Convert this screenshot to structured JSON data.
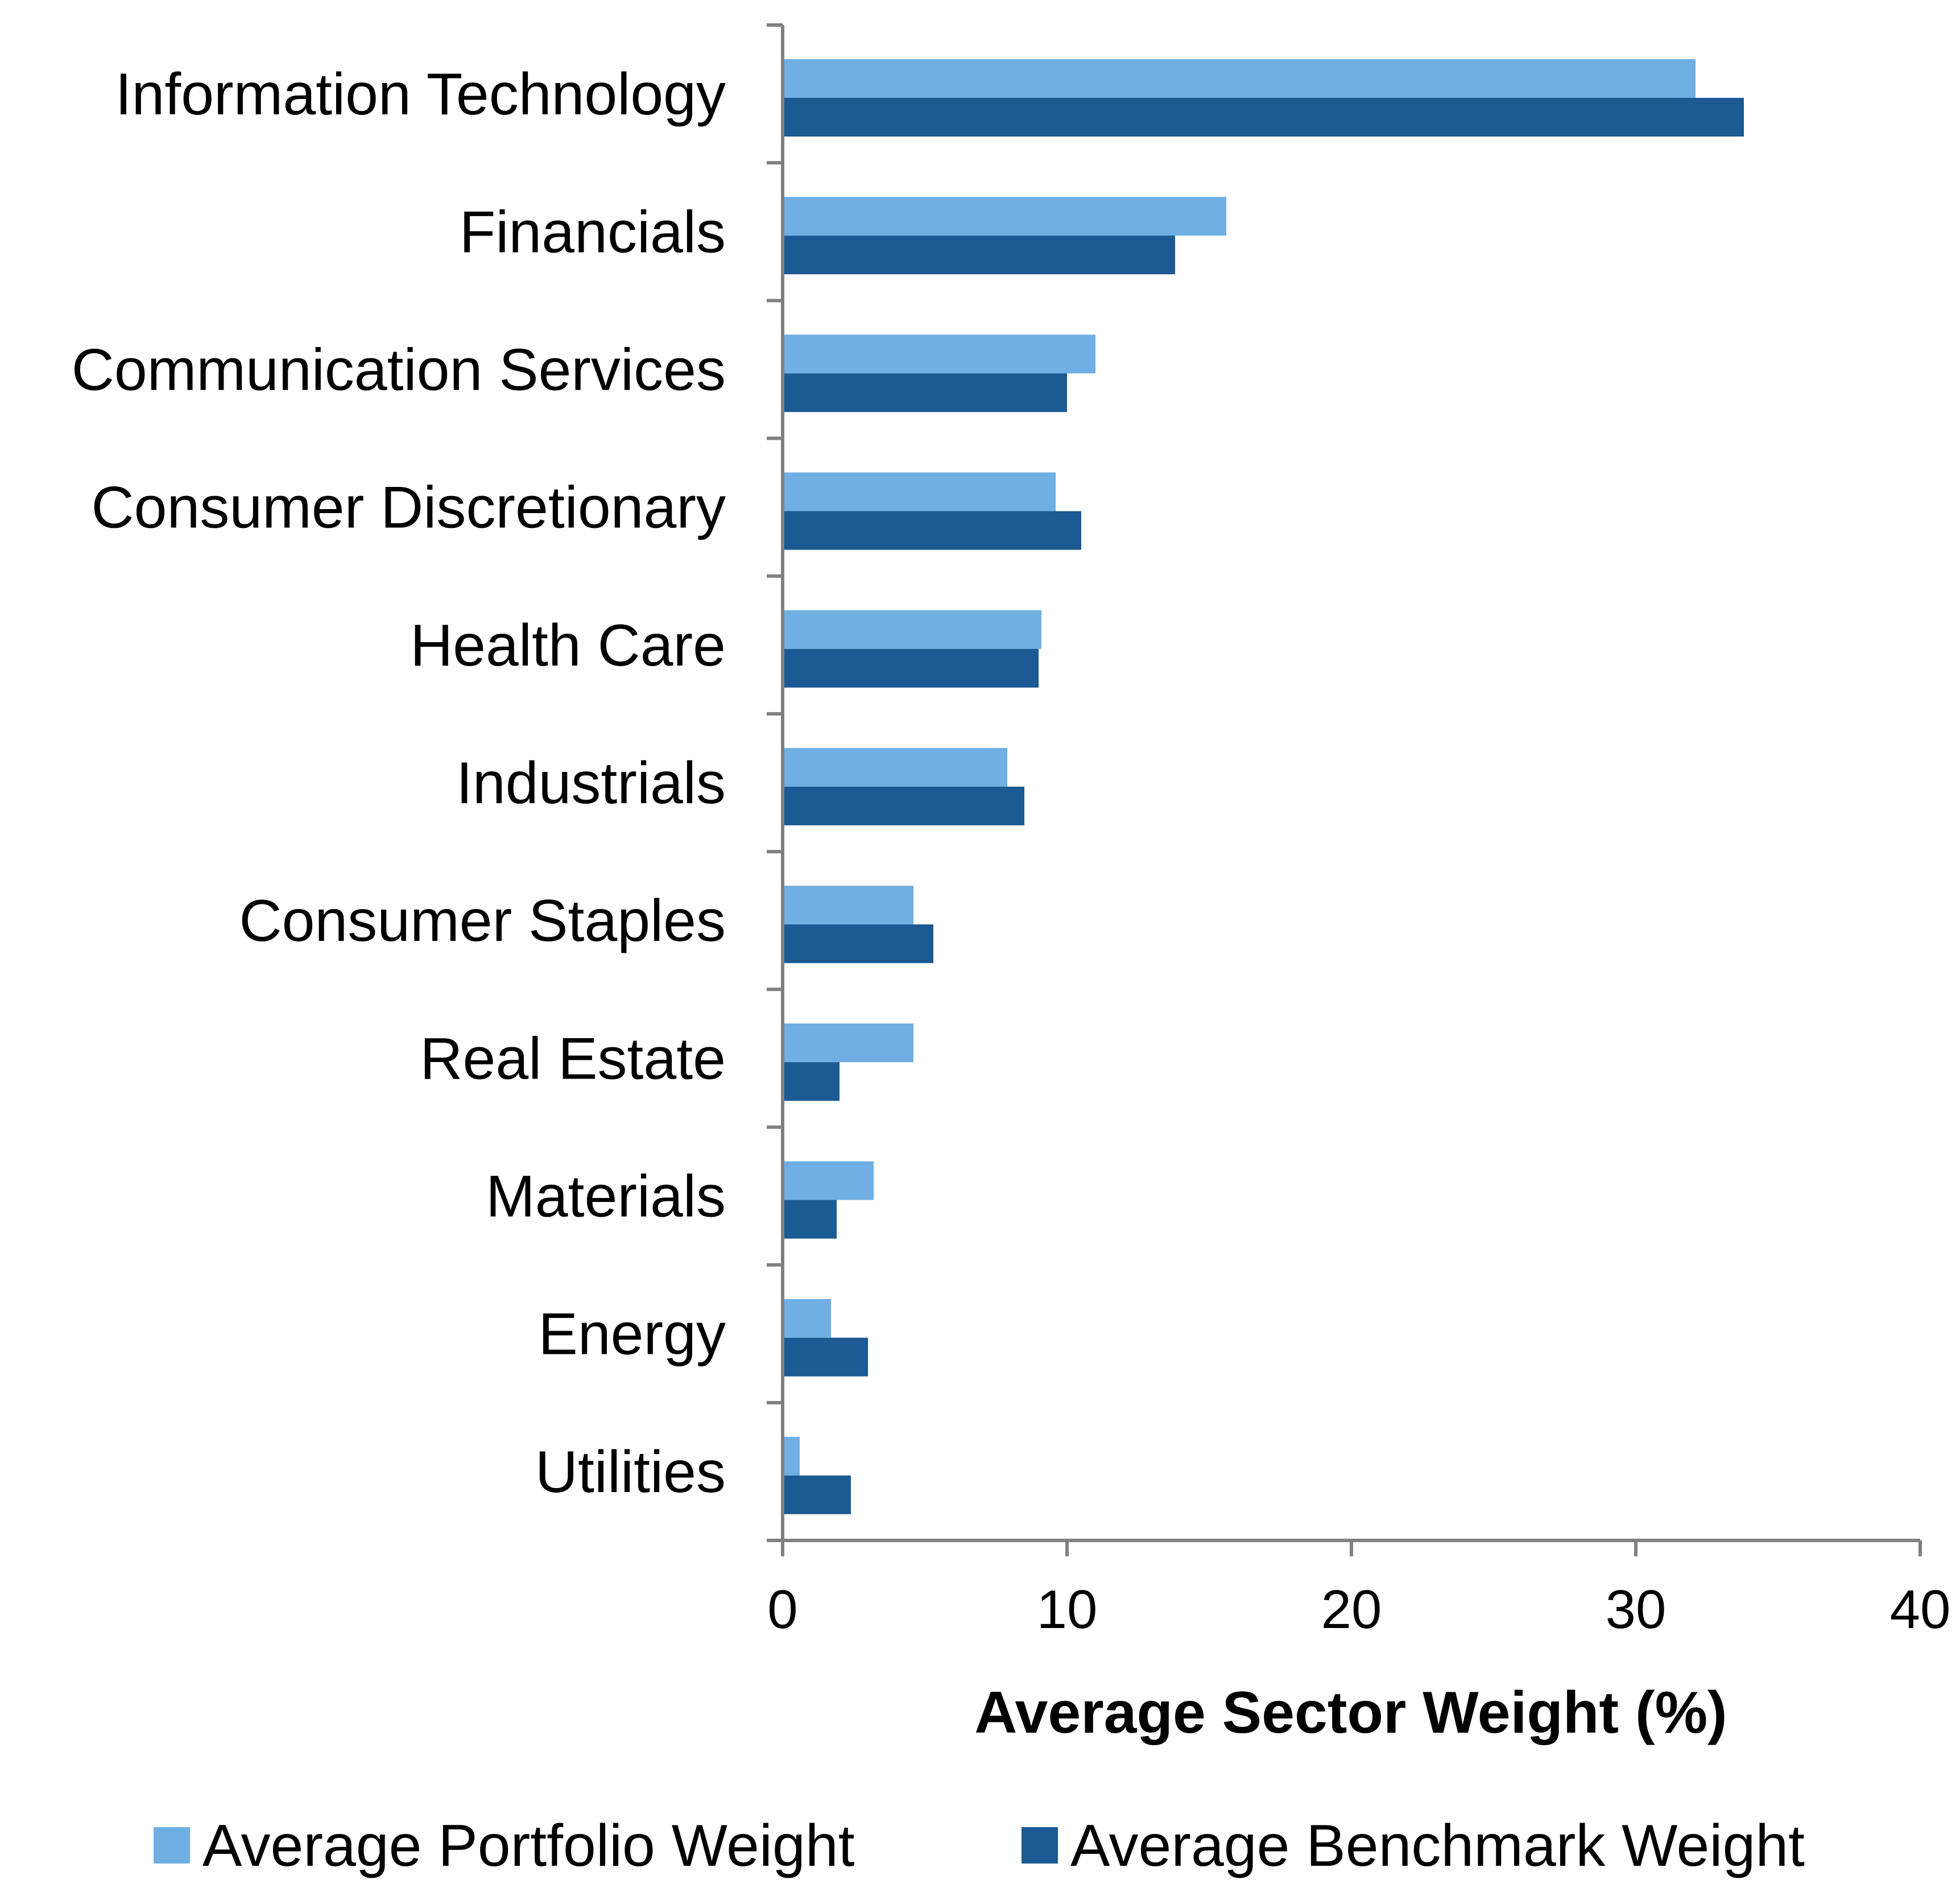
{
  "chart_data": {
    "type": "bar",
    "orientation": "horizontal",
    "title": "",
    "xlabel": "Average Sector Weight (%)",
    "ylabel": "",
    "xlim": [
      0,
      40
    ],
    "xticks": [
      "0",
      "10",
      "20",
      "30",
      "40"
    ],
    "grid": false,
    "legend_position": "bottom",
    "categories": [
      "Information Technology",
      "Financials",
      "Communication Services",
      "Consumer Discretionary",
      "Health Care",
      "Industrials",
      "Consumer Staples",
      "Real Estate",
      "Materials",
      "Energy",
      "Utilities"
    ],
    "series": [
      {
        "name": "Average Portfolio Weight",
        "color": "#6fafe4",
        "values": [
          32.1,
          15.6,
          11.0,
          9.6,
          9.1,
          7.9,
          4.6,
          4.6,
          3.2,
          1.7,
          0.6
        ]
      },
      {
        "name": "Average Benchmark Weight",
        "color": "#1b5a92",
        "values": [
          33.8,
          13.8,
          10.0,
          10.5,
          9.0,
          8.5,
          5.3,
          2.0,
          1.9,
          3.0,
          2.4
        ]
      }
    ],
    "axis_color": "#808080"
  }
}
